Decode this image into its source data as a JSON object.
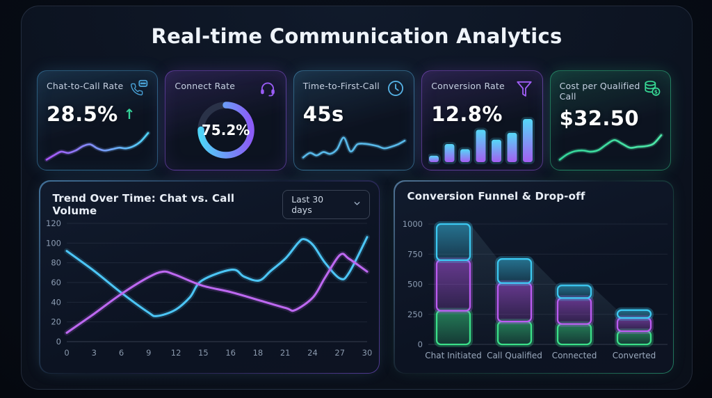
{
  "header": {
    "title": "Real-time Communication Analytics"
  },
  "kpi_cards": [
    {
      "label": "Chat-to-Call Rate",
      "value": "28.5%",
      "trend_indicator": "↑",
      "trend_color": "#34d399",
      "accent": "#4aa3d8",
      "icon": "phone-chat-icon",
      "chart_id": "spark_chat_call"
    },
    {
      "label": "Connect Rate",
      "value": "75.2%",
      "accent": "#9a5cf6",
      "icon": "headset-icon",
      "chart_id": "donut_connect"
    },
    {
      "label": "Time-to-First-Call",
      "value": "45s",
      "accent": "#55b1e4",
      "icon": "clock-icon",
      "chart_id": "spark_ttfc"
    },
    {
      "label": "Conversion Rate",
      "value": "12.8%",
      "accent": "#a05ef5",
      "icon": "funnel-icon",
      "chart_id": "bars_conversion"
    },
    {
      "label": "Cost per Qualified Call",
      "value": "$32.50",
      "accent": "#37d995",
      "icon": "coins-icon",
      "chart_id": "spark_cost"
    }
  ],
  "trend_panel": {
    "range_value": "Last 30 days"
  },
  "chart_data": [
    {
      "id": "spark_chat_call",
      "type": "line",
      "subtype": "sparkline",
      "values": [
        8,
        22,
        34,
        30,
        38,
        52,
        58,
        45,
        38,
        42,
        47,
        45,
        52,
        68,
        95
      ],
      "color_start": "#a855f7",
      "color_end": "#4fd4f7"
    },
    {
      "id": "donut_connect",
      "type": "pie",
      "subtype": "donut",
      "percent": 75.2,
      "color_start": "#4fd4f7",
      "color_end": "#8b5cf6",
      "track_color": "#2a3248"
    },
    {
      "id": "spark_ttfc",
      "type": "line",
      "subtype": "sparkline",
      "values": [
        15,
        30,
        22,
        33,
        27,
        42,
        80,
        35,
        58,
        60,
        57,
        52,
        45,
        50,
        58,
        70
      ],
      "color_start": "#58b8e8",
      "color_end": "#58b8e8"
    },
    {
      "id": "bars_conversion",
      "type": "bar",
      "subtype": "mini-bars",
      "values": [
        15,
        42,
        30,
        75,
        52,
        68,
        100
      ],
      "color_start": "#55d8f7",
      "color_end": "#a35ef2"
    },
    {
      "id": "spark_cost",
      "type": "line",
      "subtype": "sparkline",
      "values": [
        8,
        26,
        36,
        38,
        34,
        40,
        58,
        72,
        60,
        47,
        50,
        52,
        60,
        88
      ],
      "color_start": "#34d399",
      "color_end": "#4ee6a8"
    },
    {
      "id": "trend",
      "type": "line",
      "title": "Trend Over Time: Chat vs. Call Volume",
      "x_tick_labels": [
        "0",
        "3",
        "6",
        "9",
        "12",
        "15",
        "16",
        "18",
        "21",
        "24",
        "27",
        "30"
      ],
      "y_ticks": [
        0,
        20,
        40,
        60,
        80,
        100,
        120
      ],
      "ylim": [
        0,
        120
      ],
      "grid": "horizontal",
      "legend": "none",
      "series": [
        {
          "color": "#4cc5f5",
          "points": [
            [
              0,
              92
            ],
            [
              0.09,
              72
            ],
            [
              0.18,
              50
            ],
            [
              0.27,
              30
            ],
            [
              0.3,
              26
            ],
            [
              0.36,
              32
            ],
            [
              0.41,
              45
            ],
            [
              0.45,
              62
            ],
            [
              0.55,
              73
            ],
            [
              0.59,
              66
            ],
            [
              0.64,
              62
            ],
            [
              0.68,
              72
            ],
            [
              0.73,
              85
            ],
            [
              0.77,
              100
            ],
            [
              0.79,
              104
            ],
            [
              0.82,
              98
            ],
            [
              0.86,
              80
            ],
            [
              0.91,
              64
            ],
            [
              0.94,
              70
            ],
            [
              1,
              106
            ]
          ]
        },
        {
          "color": "#bd68f0",
          "points": [
            [
              0,
              9
            ],
            [
              0.09,
              28
            ],
            [
              0.18,
              48
            ],
            [
              0.27,
              65
            ],
            [
              0.32,
              71
            ],
            [
              0.36,
              68
            ],
            [
              0.45,
              57
            ],
            [
              0.55,
              50
            ],
            [
              0.64,
              42
            ],
            [
              0.73,
              34
            ],
            [
              0.76,
              32
            ],
            [
              0.82,
              45
            ],
            [
              0.86,
              65
            ],
            [
              0.91,
              88
            ],
            [
              0.94,
              84
            ],
            [
              1,
              71
            ]
          ]
        }
      ]
    },
    {
      "id": "funnel",
      "type": "bar",
      "stacked": true,
      "title": "Conversion Funnel & Drop-off",
      "categories": [
        "Chat Initiated",
        "Call Qualified",
        "Connected",
        "Converted"
      ],
      "y_ticks": [
        0,
        250,
        500,
        750,
        1000
      ],
      "ylim": [
        0,
        1000
      ],
      "grid": "horizontal",
      "legend": "none",
      "totals": [
        1000,
        710,
        490,
        285
      ],
      "series": [
        {
          "color": "#3be089",
          "values": [
            280,
            190,
            170,
            110
          ]
        },
        {
          "color": "#bb5bf2",
          "values": [
            420,
            320,
            215,
            110
          ]
        },
        {
          "color": "#3cc9f2",
          "values": [
            300,
            200,
            105,
            65
          ]
        }
      ]
    }
  ]
}
